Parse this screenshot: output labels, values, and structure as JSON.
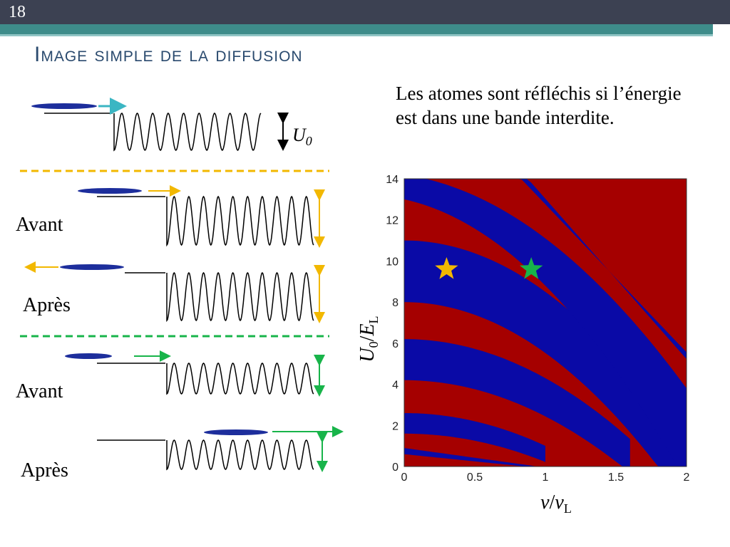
{
  "slide": {
    "number": "18",
    "title": "Image simple de la diffusion"
  },
  "description": "Les atomes sont réfléchis si l’énergie est dans une bande interdite.",
  "diagram": {
    "u0_label": "U",
    "u0_sub": "0",
    "labels": {
      "avant_1": "Avant",
      "apres_1": "Après",
      "avant_2": "Avant",
      "apres_2": "Après"
    },
    "colors": {
      "atom": "#1d2e9c",
      "yellow": "#f2b800",
      "green": "#18b44a",
      "teal": "#3bb6c3"
    }
  },
  "chart_data": {
    "type": "heatmap",
    "xlim": [
      0,
      2
    ],
    "ylim": [
      0,
      14
    ],
    "xticks": [
      "0",
      "0.5",
      "1",
      "1.5",
      "2"
    ],
    "yticks": [
      "0",
      "2",
      "4",
      "6",
      "8",
      "10",
      "12",
      "14"
    ],
    "xlabel": {
      "main": "v",
      "slash": "/",
      "var": "v",
      "sub": "L"
    },
    "ylabel": {
      "main": "U",
      "sub0": "0",
      "slash": "/",
      "var": "E",
      "sub": "L"
    },
    "colors": {
      "allowed": "#a50000",
      "forbidden": "#0a0aa6"
    },
    "markers": [
      {
        "name": "yellow-star",
        "x": 0.3,
        "y": 9.6,
        "color": "#f2b800"
      },
      {
        "name": "green-star",
        "x": 0.9,
        "y": 9.6,
        "color": "#18b44a"
      }
    ]
  }
}
